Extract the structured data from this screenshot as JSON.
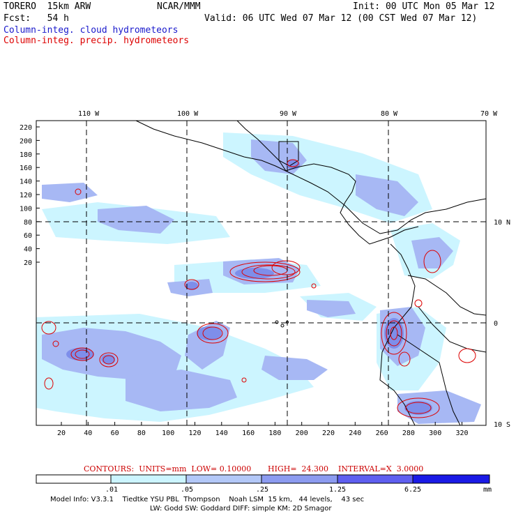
{
  "header": {
    "model": "TORERO  15km ARW",
    "org": "NCAR/MMM",
    "init": "Init: 00 UTC Mon 05 Mar 12",
    "fcst": "Fcst:   54 h",
    "valid": "Valid: 06 UTC Wed 07 Mar 12 (00 CST Wed 07 Mar 12)",
    "field1": "Column-integ. cloud hydrometeors",
    "field2": "Column-integ. precip. hydrometeors"
  },
  "axes": {
    "top_lon": [
      "110 W",
      "100 W",
      "90 W",
      "80 W",
      "70 W"
    ],
    "right_lat": [
      "10 N",
      "0",
      "10 S"
    ],
    "left_y": [
      "220",
      "200",
      "180",
      "160",
      "140",
      "120",
      "100",
      "80",
      "60",
      "40",
      "20"
    ],
    "bottom_x": [
      "20",
      "40",
      "60",
      "80",
      "100",
      "120",
      "140",
      "160",
      "180",
      "200",
      "220",
      "240",
      "260",
      "280",
      "300",
      "320"
    ]
  },
  "contours": {
    "units_label": "CONTOURS:  UNITS=mm  LOW= 0.10000",
    "high": "HIGH=  24.300",
    "interval": "INTERVAL=X  3.0000"
  },
  "colorbar": {
    "labels": [
      ".01",
      ".05",
      ".25",
      "1.25",
      "6.25"
    ],
    "unit": "mm",
    "colors": [
      "#ffffff",
      "#ccf5ff",
      "#b3c8f8",
      "#8c9bf0",
      "#5f5ff0",
      "#2a2ae8",
      "#0a0ae0"
    ]
  },
  "footer": {
    "line1": "Model Info: V3.3.1    Tiedtke YSU PBL  Thompson    Noah LSM  15 km,   44 levels,    43 sec",
    "line2": "LW: Godd SW: Goddard DIFF: simple KM: 2D Smagor"
  },
  "colors": {
    "cloud_light": "#ccf5ff",
    "cloud_mid": "#a7b8f4",
    "cloud_strong": "#7e8eea",
    "precip": "#dd0000"
  }
}
